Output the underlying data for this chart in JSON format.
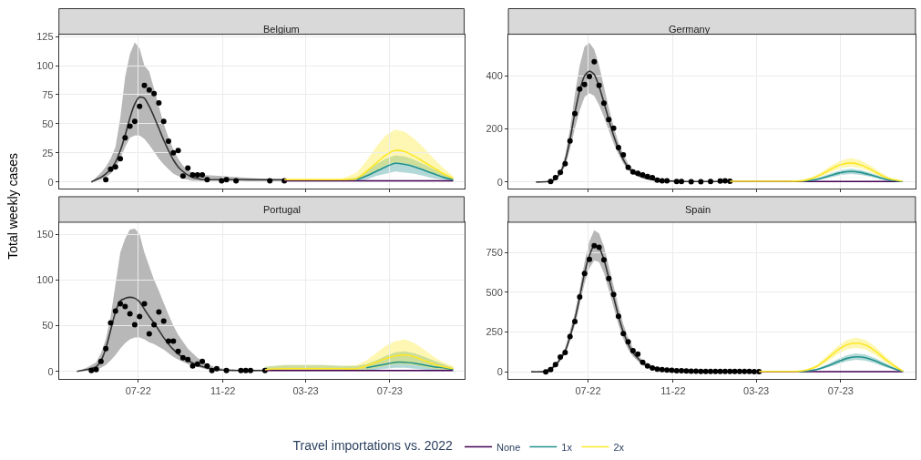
{
  "chart_data": [
    {
      "type": "line",
      "title": "Belgium",
      "ylabel": "Total weekly cases",
      "legend_title": "Travel importations vs. 2022",
      "legend": "bottom",
      "grid": true,
      "tick_labels": "y",
      "xlim": [
        "2022-03-08",
        "2023-10-17"
      ],
      "xticks": [
        {
          "value": "2022-07-01",
          "label": "07-22"
        },
        {
          "value": "2022-11-01",
          "label": "11-22"
        },
        {
          "value": "2023-03-01",
          "label": "03-23"
        },
        {
          "value": "2023-07-01",
          "label": "07-23"
        }
      ],
      "ylim": [
        -6,
        127
      ],
      "yticks": [
        0,
        25,
        50,
        75,
        100,
        125
      ],
      "series": [
        {
          "color": "#333333",
          "x": [
            "2022-04-24",
            "2022-05-01",
            "2022-05-08",
            "2022-05-15",
            "2022-05-22",
            "2022-05-29",
            "2022-06-05",
            "2022-06-12",
            "2022-06-19",
            "2022-06-26",
            "2022-07-03",
            "2022-07-10",
            "2022-07-17",
            "2022-07-24",
            "2022-07-31",
            "2022-08-07",
            "2022-08-14",
            "2022-08-21",
            "2022-08-28",
            "2022-09-04",
            "2022-09-11",
            "2022-09-18",
            "2022-09-25",
            "2022-10-02",
            "2022-10-30",
            "2022-11-27",
            "2022-12-25",
            "2023-01-29"
          ],
          "values": [
            0,
            2,
            4,
            7,
            11,
            17,
            27,
            40,
            55,
            67,
            73,
            72,
            65,
            56,
            46,
            36,
            27,
            19,
            13,
            9,
            6,
            4,
            3,
            2,
            2,
            2,
            2,
            2
          ],
          "lower": [
            0,
            1,
            2,
            4,
            7,
            12,
            20,
            30,
            38,
            40,
            40,
            37,
            32,
            26,
            20,
            15,
            11,
            7,
            5,
            3,
            2,
            1,
            1,
            1,
            1,
            1,
            0,
            0
          ],
          "upper": [
            0,
            4,
            8,
            13,
            20,
            30,
            55,
            90,
            110,
            120,
            115,
            100,
            95,
            80,
            65,
            50,
            38,
            28,
            20,
            14,
            10,
            8,
            7,
            6,
            5,
            4,
            3,
            2
          ]
        },
        {
          "type": "scatter",
          "marker": "circle",
          "color": "#000000",
          "x": [
            "2022-05-15",
            "2022-05-22",
            "2022-05-29",
            "2022-06-05",
            "2022-06-12",
            "2022-06-19",
            "2022-06-26",
            "2022-07-03",
            "2022-07-10",
            "2022-07-17",
            "2022-07-24",
            "2022-07-31",
            "2022-08-07",
            "2022-08-14",
            "2022-08-21",
            "2022-08-28",
            "2022-09-04",
            "2022-09-11",
            "2022-09-18",
            "2022-09-25",
            "2022-10-02",
            "2022-10-09",
            "2022-10-30",
            "2022-11-06",
            "2022-11-20",
            "2023-01-08",
            "2023-01-29"
          ],
          "values": [
            2,
            11,
            13,
            20,
            38,
            48,
            52,
            65,
            83,
            79,
            76,
            68,
            52,
            35,
            25,
            27,
            5,
            12,
            6,
            6,
            6,
            2,
            1,
            2,
            1,
            1,
            1
          ]
        },
        {
          "name": "None",
          "color": "#440154",
          "x": [
            "2023-01-29",
            "2023-04-23",
            "2023-07-09",
            "2023-10-01"
          ],
          "values": [
            1,
            1,
            1,
            1
          ]
        },
        {
          "name": "1x",
          "color": "#21918c",
          "x": [
            "2023-01-29",
            "2023-02-26",
            "2023-03-26",
            "2023-04-23",
            "2023-05-14",
            "2023-05-28",
            "2023-06-11",
            "2023-06-25",
            "2023-07-09",
            "2023-07-23",
            "2023-08-06",
            "2023-08-20",
            "2023-09-03",
            "2023-09-17",
            "2023-10-01"
          ],
          "values": [
            null,
            null,
            null,
            null,
            2,
            5,
            9,
            13,
            16,
            15,
            13,
            10,
            7,
            4,
            2
          ],
          "lower": [
            1,
            1,
            1,
            1,
            1,
            2,
            5,
            7,
            9,
            8,
            7,
            5,
            3,
            2,
            1
          ],
          "upper": [
            2,
            2,
            2,
            2,
            4,
            9,
            15,
            20,
            23,
            22,
            19,
            15,
            11,
            7,
            3
          ]
        },
        {
          "name": "2x",
          "color": "#fde725",
          "x": [
            "2023-01-29",
            "2023-02-26",
            "2023-03-26",
            "2023-04-23",
            "2023-05-14",
            "2023-05-28",
            "2023-06-11",
            "2023-06-25",
            "2023-07-09",
            "2023-07-23",
            "2023-08-06",
            "2023-08-20",
            "2023-09-03",
            "2023-09-17",
            "2023-10-01"
          ],
          "values": [
            2,
            2,
            2,
            2,
            3,
            9,
            16,
            23,
            27,
            26,
            22,
            17,
            12,
            7,
            3
          ],
          "lower": [
            1,
            1,
            1,
            1,
            2,
            5,
            10,
            14,
            17,
            16,
            14,
            11,
            7,
            4,
            2
          ],
          "upper": [
            3,
            3,
            3,
            3,
            8,
            18,
            30,
            40,
            45,
            43,
            37,
            29,
            20,
            12,
            5
          ]
        }
      ]
    },
    {
      "type": "line",
      "title": "Germany",
      "grid": true,
      "tick_labels": "y",
      "xlim": [
        "2022-03-08",
        "2023-10-17"
      ],
      "xticks": [
        {
          "value": "2022-07-01",
          "label": "07-22"
        },
        {
          "value": "2022-11-01",
          "label": "11-22"
        },
        {
          "value": "2023-03-01",
          "label": "03-23"
        },
        {
          "value": "2023-07-01",
          "label": "07-23"
        }
      ],
      "ylim": [
        -26,
        557
      ],
      "yticks": [
        0,
        200,
        400
      ],
      "series": [
        {
          "color": "#333333",
          "x": [
            "2022-04-17",
            "2022-05-08",
            "2022-05-15",
            "2022-05-22",
            "2022-05-29",
            "2022-06-05",
            "2022-06-12",
            "2022-06-19",
            "2022-06-26",
            "2022-07-03",
            "2022-07-10",
            "2022-07-17",
            "2022-07-24",
            "2022-07-31",
            "2022-08-07",
            "2022-08-14",
            "2022-08-21",
            "2022-08-28",
            "2022-09-04",
            "2022-09-11",
            "2022-09-18",
            "2022-09-25",
            "2022-10-09",
            "2022-10-23",
            "2022-11-20",
            "2023-01-22"
          ],
          "values": [
            0,
            3,
            12,
            35,
            80,
            160,
            260,
            345,
            400,
            418,
            405,
            360,
            300,
            235,
            175,
            125,
            85,
            55,
            38,
            26,
            18,
            12,
            6,
            4,
            2,
            2
          ],
          "lower": [
            0,
            2,
            9,
            28,
            60,
            125,
            200,
            270,
            320,
            335,
            325,
            290,
            245,
            195,
            145,
            105,
            70,
            45,
            30,
            20,
            14,
            9,
            4,
            3,
            1,
            1
          ],
          "upper": [
            0,
            4,
            15,
            42,
            100,
            200,
            330,
            440,
            510,
            525,
            500,
            440,
            360,
            280,
            210,
            150,
            105,
            70,
            48,
            33,
            23,
            15,
            8,
            5,
            3,
            3
          ]
        },
        {
          "type": "scatter",
          "marker": "circle",
          "color": "#000000",
          "x": [
            "2022-05-08",
            "2022-05-15",
            "2022-05-22",
            "2022-05-29",
            "2022-06-05",
            "2022-06-12",
            "2022-06-19",
            "2022-06-26",
            "2022-07-03",
            "2022-07-10",
            "2022-07-17",
            "2022-07-24",
            "2022-07-31",
            "2022-08-07",
            "2022-08-14",
            "2022-08-21",
            "2022-08-28",
            "2022-09-04",
            "2022-09-11",
            "2022-09-18",
            "2022-09-25",
            "2022-10-02",
            "2022-10-09",
            "2022-10-16",
            "2022-10-23",
            "2022-11-06",
            "2022-11-13",
            "2022-11-27",
            "2022-12-11",
            "2022-12-25",
            "2023-01-08",
            "2023-01-15",
            "2023-01-22"
          ],
          "values": [
            2,
            17,
            36,
            69,
            155,
            258,
            350,
            368,
            398,
            453,
            364,
            297,
            235,
            203,
            130,
            102,
            55,
            38,
            33,
            27,
            21,
            17,
            7,
            5,
            5,
            2,
            2,
            1,
            1,
            2,
            4,
            5,
            3
          ]
        },
        {
          "name": "None",
          "color": "#440154",
          "x": [
            "2023-01-22",
            "2023-04-16",
            "2023-07-16",
            "2023-09-28"
          ],
          "values": [
            2,
            2,
            2,
            2
          ]
        },
        {
          "name": "1x",
          "color": "#21918c",
          "x": [
            "2023-01-22",
            "2023-02-19",
            "2023-03-19",
            "2023-04-16",
            "2023-05-07",
            "2023-05-21",
            "2023-06-04",
            "2023-06-18",
            "2023-07-02",
            "2023-07-16",
            "2023-07-30",
            "2023-08-13",
            "2023-08-27",
            "2023-09-10",
            "2023-09-28"
          ],
          "values": [
            null,
            null,
            null,
            null,
            3,
            7,
            15,
            26,
            36,
            40,
            36,
            27,
            16,
            7,
            2
          ],
          "lower": [
            1,
            1,
            1,
            1,
            2,
            5,
            10,
            18,
            27,
            30,
            27,
            20,
            11,
            5,
            1
          ],
          "upper": [
            3,
            3,
            3,
            3,
            5,
            10,
            20,
            34,
            45,
            50,
            45,
            35,
            22,
            10,
            3
          ]
        },
        {
          "name": "2x",
          "color": "#fde725",
          "x": [
            "2023-01-22",
            "2023-02-19",
            "2023-03-19",
            "2023-04-16",
            "2023-05-07",
            "2023-05-21",
            "2023-06-04",
            "2023-06-18",
            "2023-07-02",
            "2023-07-16",
            "2023-07-30",
            "2023-08-13",
            "2023-08-27",
            "2023-09-10",
            "2023-09-28"
          ],
          "values": [
            3,
            3,
            3,
            3,
            5,
            14,
            30,
            50,
            66,
            72,
            65,
            48,
            28,
            12,
            3
          ],
          "lower": [
            2,
            2,
            2,
            2,
            3,
            10,
            22,
            38,
            53,
            58,
            52,
            38,
            21,
            9,
            2
          ],
          "upper": [
            5,
            5,
            5,
            5,
            8,
            19,
            38,
            63,
            82,
            90,
            82,
            62,
            37,
            17,
            5
          ]
        }
      ]
    },
    {
      "type": "line",
      "title": "Portugal",
      "grid": true,
      "xlim": [
        "2022-03-08",
        "2023-10-17"
      ],
      "xticks": [
        {
          "value": "2022-07-01",
          "label": "07-22"
        },
        {
          "value": "2022-11-01",
          "label": "11-22"
        },
        {
          "value": "2023-03-01",
          "label": "03-23"
        },
        {
          "value": "2023-07-01",
          "label": "07-23"
        }
      ],
      "ylim": [
        -8,
        163
      ],
      "yticks": [
        0,
        50,
        100,
        150
      ],
      "series": [
        {
          "color": "#333333",
          "x": [
            "2022-04-03",
            "2022-04-17",
            "2022-05-01",
            "2022-05-08",
            "2022-05-15",
            "2022-05-22",
            "2022-05-29",
            "2022-06-05",
            "2022-06-12",
            "2022-06-19",
            "2022-06-26",
            "2022-07-03",
            "2022-07-10",
            "2022-07-17",
            "2022-07-24",
            "2022-07-31",
            "2022-08-07",
            "2022-08-14",
            "2022-08-21",
            "2022-08-28",
            "2022-09-11",
            "2022-09-25",
            "2022-10-09",
            "2022-10-23",
            "2022-11-20",
            "2023-01-01"
          ],
          "values": [
            0,
            2,
            5,
            12,
            25,
            45,
            65,
            77,
            80,
            81,
            80,
            76,
            68,
            60,
            53,
            45,
            37,
            30,
            24,
            19,
            12,
            7,
            4,
            2,
            1,
            1
          ],
          "lower": [
            0,
            1,
            2,
            4,
            7,
            12,
            18,
            25,
            31,
            35,
            37,
            37,
            35,
            32,
            30,
            27,
            24,
            20,
            16,
            13,
            8,
            5,
            2,
            1,
            0,
            0
          ],
          "upper": [
            0,
            4,
            10,
            20,
            35,
            60,
            95,
            130,
            145,
            155,
            156,
            150,
            130,
            115,
            100,
            88,
            75,
            62,
            50,
            40,
            25,
            15,
            8,
            4,
            2,
            2
          ]
        },
        {
          "type": "scatter",
          "marker": "circle",
          "color": "#000000",
          "x": [
            "2022-04-24",
            "2022-05-01",
            "2022-05-08",
            "2022-05-15",
            "2022-05-22",
            "2022-05-29",
            "2022-06-05",
            "2022-06-12",
            "2022-06-19",
            "2022-06-26",
            "2022-07-03",
            "2022-07-10",
            "2022-07-17",
            "2022-07-24",
            "2022-07-31",
            "2022-08-07",
            "2022-08-14",
            "2022-08-21",
            "2022-08-28",
            "2022-09-04",
            "2022-09-11",
            "2022-09-18",
            "2022-09-25",
            "2022-10-02",
            "2022-10-09",
            "2022-10-16",
            "2022-10-23",
            "2022-11-06",
            "2022-11-27",
            "2022-12-04",
            "2022-12-11",
            "2023-01-01"
          ],
          "values": [
            1,
            2,
            11,
            25,
            53,
            66,
            74,
            71,
            63,
            51,
            60,
            74,
            41,
            51,
            65,
            55,
            33,
            33,
            22,
            15,
            13,
            6,
            8,
            11,
            6,
            1,
            3,
            1,
            1,
            1,
            1,
            1
          ]
        },
        {
          "name": "None",
          "color": "#440154",
          "x": [
            "2023-01-01",
            "2023-04-23",
            "2023-07-09",
            "2023-10-01"
          ],
          "values": [
            1,
            1,
            1,
            1
          ]
        },
        {
          "name": "1x",
          "color": "#21918c",
          "x": [
            "2023-01-01",
            "2023-01-29",
            "2023-02-26",
            "2023-03-26",
            "2023-04-23",
            "2023-05-14",
            "2023-05-28",
            "2023-06-11",
            "2023-06-25",
            "2023-07-09",
            "2023-07-23",
            "2023-08-06",
            "2023-08-20",
            "2023-09-03",
            "2023-09-17",
            "2023-10-01"
          ],
          "values": [
            null,
            null,
            null,
            null,
            null,
            null,
            4,
            6,
            8,
            10,
            10,
            9,
            7,
            5,
            4,
            2
          ],
          "lower": [
            0,
            0,
            0,
            0,
            0,
            0,
            1,
            2,
            3,
            4,
            4,
            3,
            2,
            1,
            1,
            0
          ],
          "upper": [
            5,
            7,
            7,
            7,
            6,
            6,
            8,
            12,
            17,
            21,
            22,
            20,
            16,
            12,
            8,
            4
          ]
        },
        {
          "name": "2x",
          "color": "#fde725",
          "x": [
            "2023-01-01",
            "2023-01-29",
            "2023-02-26",
            "2023-03-26",
            "2023-04-23",
            "2023-05-14",
            "2023-05-28",
            "2023-06-11",
            "2023-06-25",
            "2023-07-09",
            "2023-07-23",
            "2023-08-06",
            "2023-08-20",
            "2023-09-03",
            "2023-09-17",
            "2023-10-01"
          ],
          "values": [
            2,
            3,
            3,
            3,
            3,
            3,
            6,
            10,
            14,
            17,
            18,
            16,
            12,
            8,
            5,
            3
          ],
          "lower": [
            0,
            0,
            0,
            0,
            0,
            0,
            2,
            4,
            6,
            8,
            8,
            7,
            5,
            3,
            2,
            1
          ],
          "upper": [
            5,
            7,
            7,
            7,
            6,
            7,
            12,
            20,
            28,
            33,
            35,
            31,
            24,
            16,
            10,
            6
          ]
        }
      ]
    },
    {
      "type": "line",
      "title": "Spain",
      "grid": true,
      "xlim": [
        "2022-03-08",
        "2023-10-17"
      ],
      "xticks": [
        {
          "value": "2022-07-01",
          "label": "07-22"
        },
        {
          "value": "2022-11-01",
          "label": "11-22"
        },
        {
          "value": "2023-03-01",
          "label": "03-23"
        },
        {
          "value": "2023-07-01",
          "label": "07-23"
        }
      ],
      "ylim": [
        -44,
        940
      ],
      "yticks": [
        0,
        250,
        500,
        750
      ],
      "series": [
        {
          "color": "#333333",
          "x": [
            "2022-04-10",
            "2022-05-01",
            "2022-05-15",
            "2022-05-29",
            "2022-06-12",
            "2022-06-19",
            "2022-06-26",
            "2022-07-03",
            "2022-07-10",
            "2022-07-17",
            "2022-07-24",
            "2022-07-31",
            "2022-08-07",
            "2022-08-14",
            "2022-08-21",
            "2022-08-28",
            "2022-09-04",
            "2022-09-18",
            "2022-10-02",
            "2022-10-16",
            "2022-11-13",
            "2022-12-11",
            "2023-03-05"
          ],
          "values": [
            0,
            3,
            40,
            130,
            330,
            470,
            620,
            730,
            795,
            780,
            705,
            590,
            470,
            350,
            250,
            175,
            120,
            55,
            25,
            13,
            6,
            3,
            1
          ],
          "lower": [
            0,
            1,
            30,
            110,
            290,
            420,
            555,
            650,
            700,
            690,
            620,
            515,
            405,
            295,
            205,
            140,
            95,
            40,
            17,
            8,
            3,
            1,
            0
          ],
          "upper": [
            0,
            6,
            50,
            150,
            370,
            520,
            690,
            820,
            890,
            870,
            790,
            665,
            540,
            410,
            300,
            215,
            150,
            70,
            35,
            20,
            10,
            6,
            3
          ]
        },
        {
          "type": "scatter",
          "marker": "circle",
          "color": "#000000",
          "x": [
            "2022-05-01",
            "2022-05-08",
            "2022-05-15",
            "2022-05-22",
            "2022-05-29",
            "2022-06-05",
            "2022-06-12",
            "2022-06-19",
            "2022-06-26",
            "2022-07-03",
            "2022-07-10",
            "2022-07-17",
            "2022-07-24",
            "2022-07-31",
            "2022-08-07",
            "2022-08-14",
            "2022-08-21",
            "2022-08-28",
            "2022-09-04",
            "2022-09-11",
            "2022-09-18",
            "2022-09-25",
            "2022-10-02",
            "2022-10-09",
            "2022-10-16",
            "2022-10-23",
            "2022-10-30",
            "2022-11-06",
            "2022-11-13",
            "2022-11-20",
            "2022-11-27",
            "2022-12-04",
            "2022-12-11",
            "2022-12-18",
            "2022-12-25",
            "2023-01-01",
            "2023-01-08",
            "2023-01-15",
            "2023-01-22",
            "2023-01-29",
            "2023-02-05",
            "2023-02-12",
            "2023-02-19",
            "2023-02-26",
            "2023-03-05"
          ],
          "values": [
            0,
            13,
            45,
            93,
            121,
            221,
            316,
            470,
            618,
            707,
            792,
            782,
            703,
            586,
            486,
            348,
            240,
            189,
            132,
            111,
            60,
            36,
            23,
            17,
            13,
            11,
            9,
            7,
            6,
            5,
            4,
            3,
            2,
            2,
            2,
            2,
            2,
            2,
            2,
            2,
            2,
            2,
            2,
            1,
            1
          ]
        },
        {
          "name": "None",
          "color": "#440154",
          "x": [
            "2023-03-05",
            "2023-05-14",
            "2023-07-23",
            "2023-09-29"
          ],
          "values": [
            1,
            1,
            1,
            1
          ]
        },
        {
          "name": "1x",
          "color": "#21918c",
          "x": [
            "2023-03-05",
            "2023-04-02",
            "2023-04-30",
            "2023-05-14",
            "2023-05-28",
            "2023-06-11",
            "2023-06-25",
            "2023-07-09",
            "2023-07-23",
            "2023-08-06",
            "2023-08-20",
            "2023-09-03",
            "2023-09-17",
            "2023-09-29"
          ],
          "values": [
            null,
            null,
            2,
            5,
            15,
            35,
            60,
            83,
            94,
            88,
            68,
            42,
            18,
            2
          ],
          "lower": [
            1,
            1,
            1,
            3,
            10,
            25,
            45,
            65,
            75,
            70,
            52,
            30,
            12,
            1
          ],
          "upper": [
            2,
            2,
            3,
            8,
            20,
            45,
            75,
            102,
            115,
            108,
            85,
            55,
            25,
            4
          ]
        },
        {
          "name": "2x",
          "color": "#fde725",
          "x": [
            "2023-03-05",
            "2023-04-02",
            "2023-04-30",
            "2023-05-14",
            "2023-05-28",
            "2023-06-11",
            "2023-06-25",
            "2023-07-09",
            "2023-07-23",
            "2023-08-06",
            "2023-08-20",
            "2023-09-03",
            "2023-09-17",
            "2023-09-29"
          ],
          "values": [
            2,
            2,
            3,
            12,
            35,
            80,
            130,
            168,
            180,
            168,
            130,
            80,
            35,
            4
          ],
          "lower": [
            1,
            1,
            2,
            8,
            25,
            60,
            105,
            140,
            150,
            140,
            105,
            60,
            25,
            2
          ],
          "upper": [
            3,
            3,
            5,
            16,
            45,
            100,
            155,
            198,
            215,
            200,
            158,
            100,
            48,
            6
          ]
        }
      ]
    }
  ]
}
